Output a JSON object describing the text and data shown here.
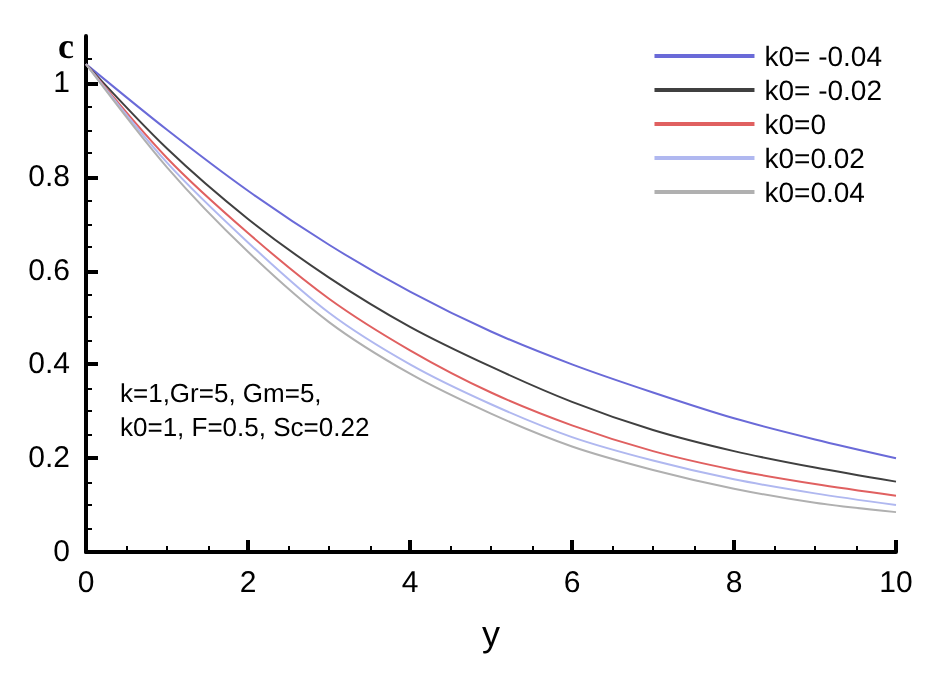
{
  "chart_data": {
    "type": "line",
    "xlabel": "y",
    "ylabel": "c",
    "x": [
      0,
      1,
      2,
      3,
      4,
      5,
      6,
      7,
      8,
      9,
      10
    ],
    "series": [
      {
        "name": "k0= -0.04",
        "color": "#6a6ad8",
        "values": [
          1.04,
          0.9,
          0.77,
          0.655,
          0.555,
          0.47,
          0.4,
          0.34,
          0.285,
          0.24,
          0.2
        ]
      },
      {
        "name": "k0= -0.02",
        "color": "#404040",
        "values": [
          1.04,
          0.86,
          0.71,
          0.585,
          0.48,
          0.395,
          0.32,
          0.26,
          0.215,
          0.18,
          0.15
        ]
      },
      {
        "name": "k0=0",
        "color": "#e06060",
        "values": [
          1.04,
          0.84,
          0.68,
          0.54,
          0.43,
          0.34,
          0.27,
          0.215,
          0.175,
          0.145,
          0.12
        ]
      },
      {
        "name": "k0=0.02",
        "color": "#b0b8f0",
        "values": [
          1.04,
          0.83,
          0.66,
          0.51,
          0.4,
          0.315,
          0.245,
          0.195,
          0.155,
          0.125,
          0.1
        ]
      },
      {
        "name": "k0=0.04",
        "color": "#b0b0b0",
        "values": [
          1.04,
          0.82,
          0.64,
          0.49,
          0.38,
          0.295,
          0.225,
          0.175,
          0.135,
          0.105,
          0.085
        ]
      }
    ],
    "xlim": [
      0,
      10
    ],
    "xticks": [
      0,
      2,
      4,
      6,
      8,
      10
    ],
    "ylim": [
      0,
      1.1
    ],
    "yticks": [
      0,
      0.2,
      0.4,
      0.6,
      0.8,
      1
    ],
    "annotations": [
      "k=1,Gr=5, Gm=5,\nk0=1, F=0.5, Sc=0.22"
    ],
    "legend": "top right",
    "grid": false,
    "marker": "none",
    "line_style": "solid"
  }
}
